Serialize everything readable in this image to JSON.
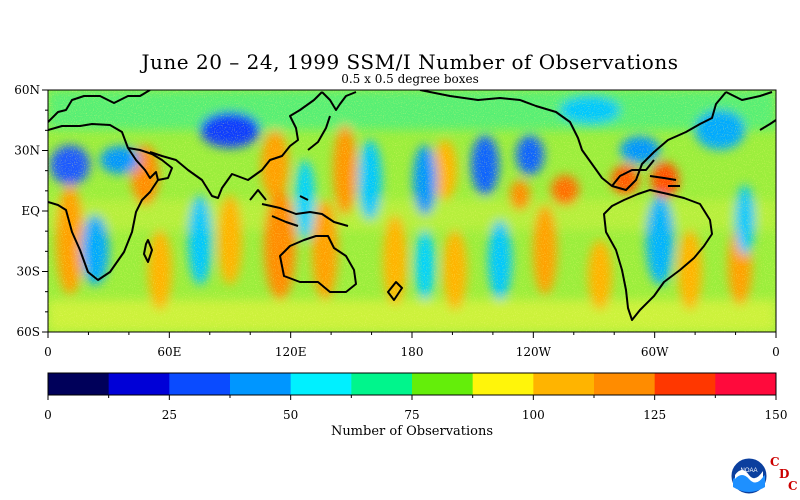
{
  "title": "June 20 – 24, 1999 SSM/I Number of Observations",
  "subtitle": "0.5 x 0.5 degree boxes",
  "map": {
    "lat_labels": [
      "60N",
      "30N",
      "EQ",
      "30S",
      "60S"
    ],
    "lon_labels": [
      "0",
      "60E",
      "120E",
      "180",
      "120W",
      "60W",
      "0"
    ],
    "lat_range": [
      -60,
      60
    ],
    "lon_range": [
      0,
      360
    ]
  },
  "colorbar": {
    "label": "Number of Observations",
    "tick_labels": [
      "0",
      "25",
      "50",
      "75",
      "100",
      "125",
      "150"
    ],
    "range": [
      0,
      150
    ],
    "colors": [
      "#00005a",
      "#0000d7",
      "#0a4bff",
      "#0096ff",
      "#00f0ff",
      "#00f58c",
      "#64ee0a",
      "#fff50a",
      "#ffb400",
      "#ff8c00",
      "#ff3700",
      "#ff0a3c"
    ]
  },
  "logos": {
    "noaa_text": "NOAA",
    "cdc_letters": [
      "C",
      "D",
      "C"
    ]
  }
}
